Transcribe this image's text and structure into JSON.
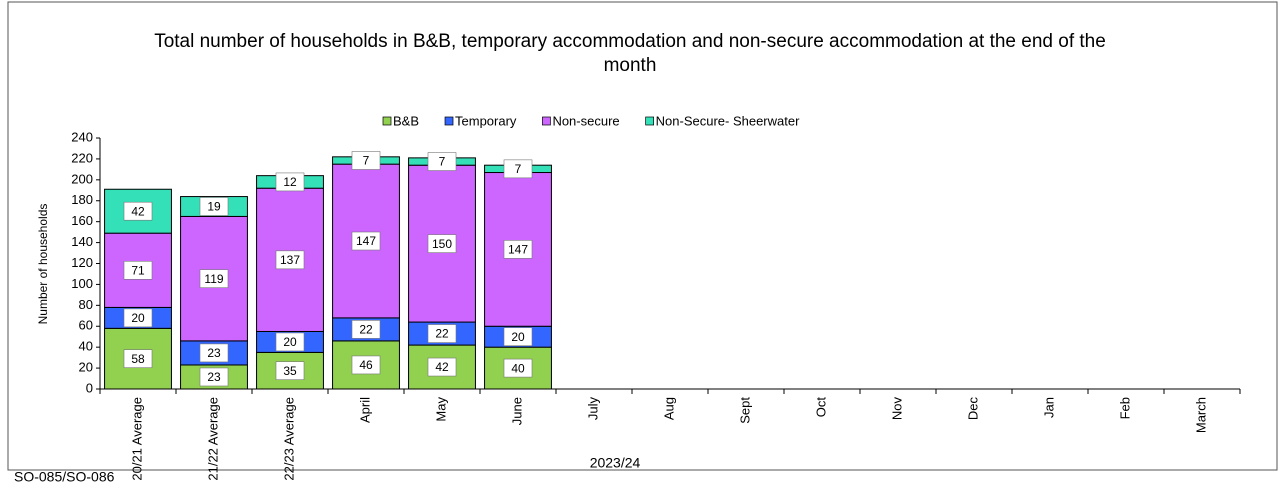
{
  "chart_data": {
    "type": "stacked_bar",
    "title": "Total number of households in B&B, temporary accommodation and non-secure accommodation at the end of the month",
    "y_label": "Number of households",
    "x_label": "2023/24",
    "footnote": "SO-085/SO-086",
    "categories": [
      "20/21 Average",
      "21/22 Average",
      "22/23 Average",
      "April",
      "May",
      "June",
      "July",
      "Aug",
      "Sept",
      "Oct",
      "Nov",
      "Dec",
      "Jan",
      "Feb",
      "March"
    ],
    "series": [
      {
        "name": "B&B",
        "color": "#92d050",
        "values": [
          58,
          23,
          35,
          46,
          42,
          40,
          null,
          null,
          null,
          null,
          null,
          null,
          null,
          null,
          null
        ]
      },
      {
        "name": "Temporary",
        "color": "#3366ff",
        "values": [
          20,
          23,
          20,
          22,
          22,
          20,
          null,
          null,
          null,
          null,
          null,
          null,
          null,
          null,
          null
        ]
      },
      {
        "name": "Non-secure",
        "color": "#cc66ff",
        "values": [
          71,
          119,
          137,
          147,
          150,
          147,
          null,
          null,
          null,
          null,
          null,
          null,
          null,
          null,
          null
        ]
      },
      {
        "name": "Non-Secure- Sheerwater",
        "color": "#33e0b8",
        "values": [
          42,
          19,
          12,
          7,
          7,
          7,
          null,
          null,
          null,
          null,
          null,
          null,
          null,
          null,
          null
        ]
      }
    ],
    "ylim": [
      0,
      240
    ],
    "yticks": [
      0,
      20,
      40,
      60,
      80,
      100,
      120,
      140,
      160,
      180,
      200,
      220,
      240
    ],
    "legend": "top"
  }
}
